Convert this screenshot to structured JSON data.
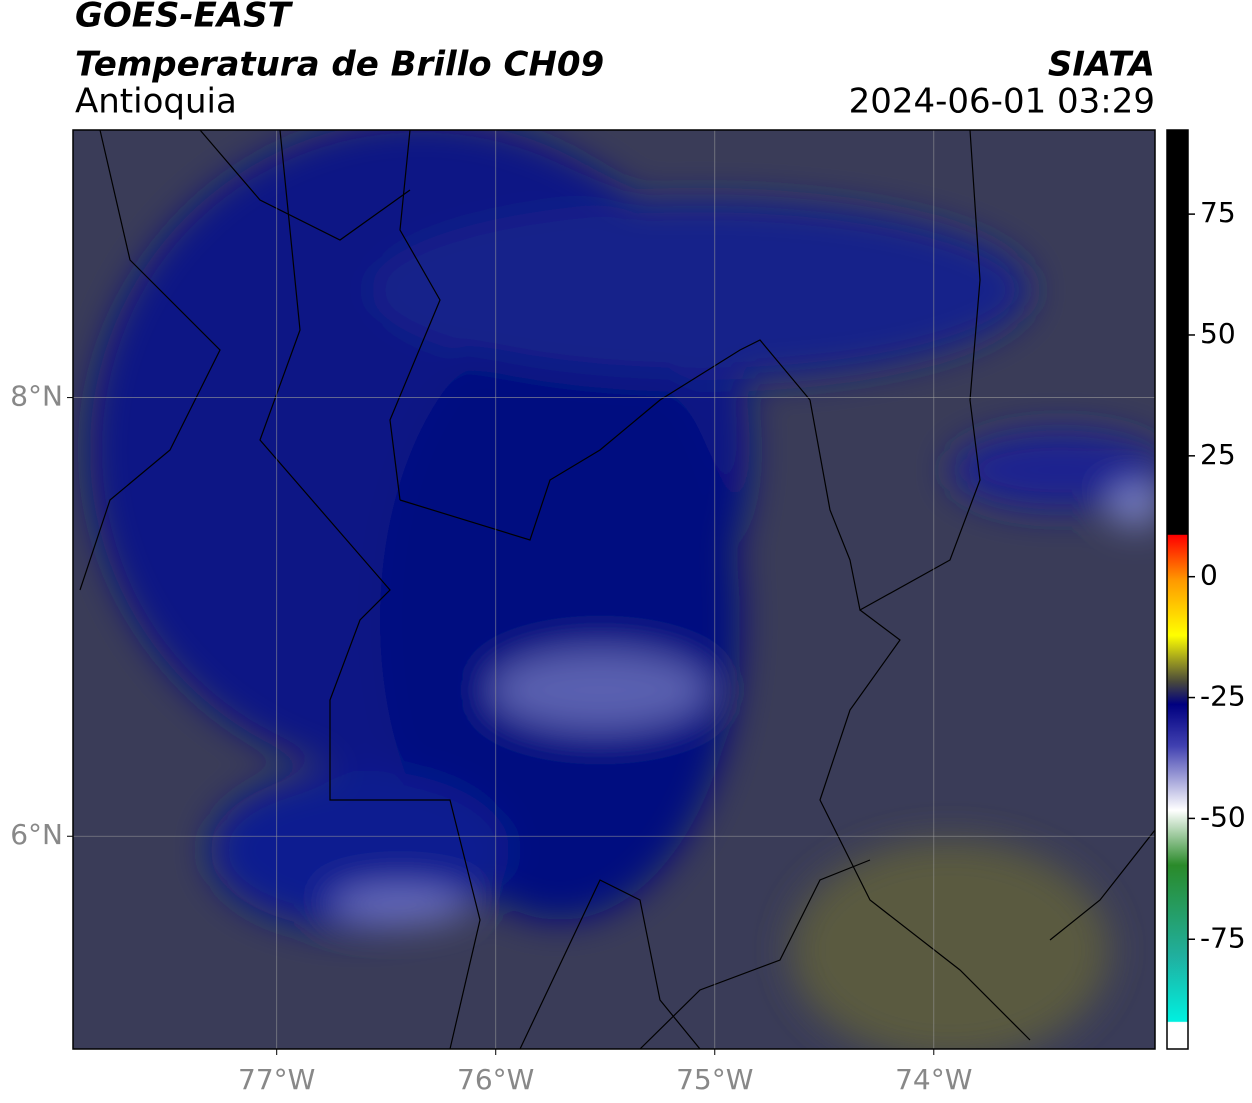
{
  "header": {
    "title": "GOES-EAST",
    "subtitle": "Temperatura de Brillo CH09",
    "region": "Antioquia",
    "source": "SIATA",
    "datetime": "2024-06-01 03:29"
  },
  "map": {
    "lon_range": [
      -77.93,
      -72.99
    ],
    "lat_range": [
      5.03,
      9.22
    ],
    "lon_ticks": [
      {
        "value": -77,
        "label": "77°W"
      },
      {
        "value": -76,
        "label": "76°W"
      },
      {
        "value": -75,
        "label": "75°W"
      },
      {
        "value": -74,
        "label": "74°W"
      }
    ],
    "lat_ticks": [
      {
        "value": 8,
        "label": "8°N"
      },
      {
        "value": 6,
        "label": "6°N"
      }
    ]
  },
  "colorbar": {
    "range": [
      -97.7,
      92.4
    ],
    "ticks": [
      75,
      50,
      25,
      0,
      -25,
      -50,
      -75
    ]
  }
}
